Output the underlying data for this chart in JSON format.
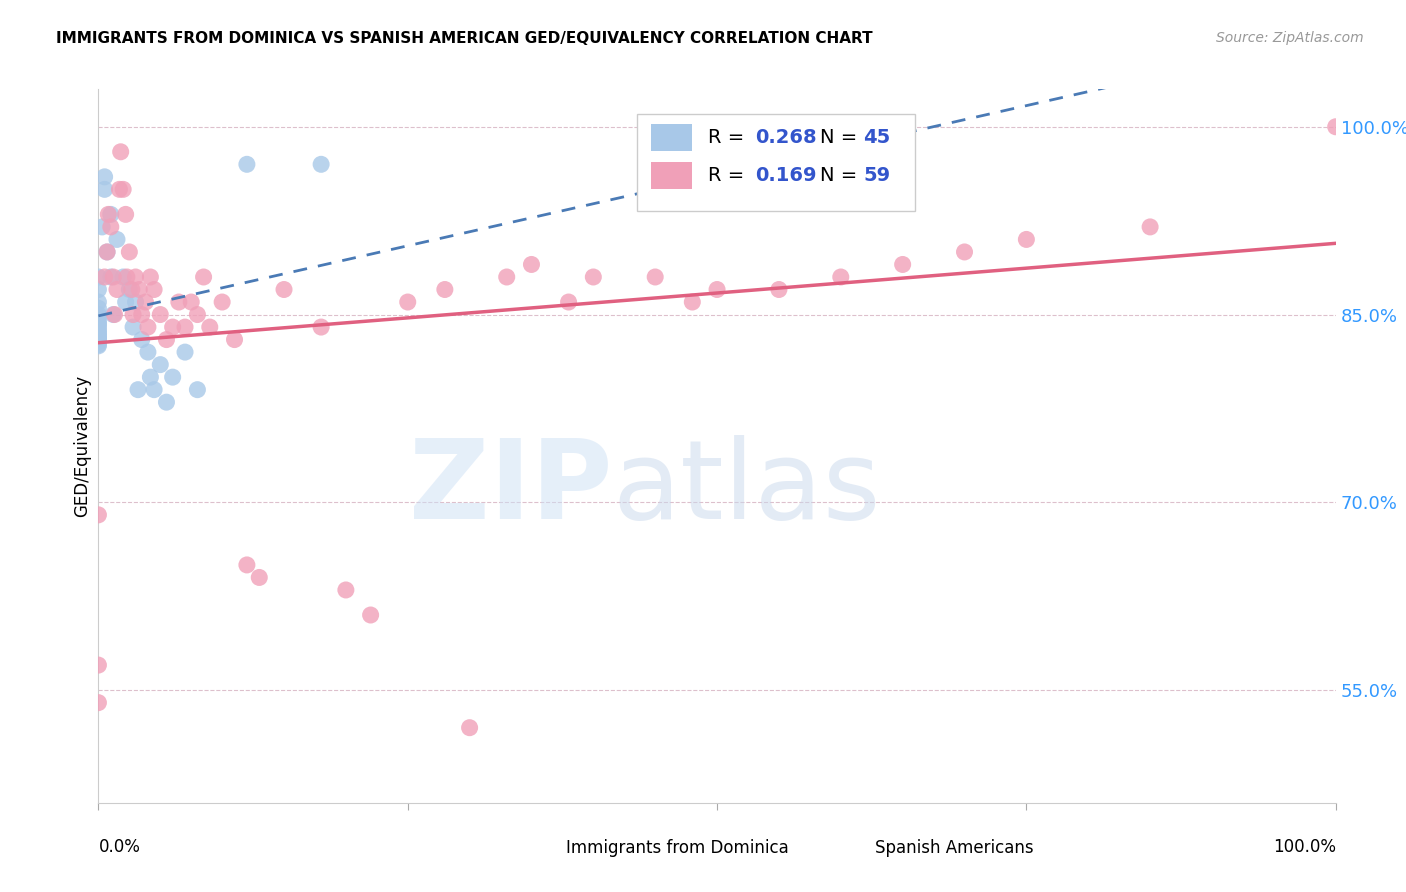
{
  "title": "IMMIGRANTS FROM DOMINICA VS SPANISH AMERICAN GED/EQUIVALENCY CORRELATION CHART",
  "source": "Source: ZipAtlas.com",
  "ylabel": "GED/Equivalency",
  "xlim": [
    0.0,
    1.0
  ],
  "ylim": [
    0.46,
    1.03
  ],
  "yticks": [
    0.55,
    0.7,
    0.85,
    1.0
  ],
  "ytick_labels": [
    "55.0%",
    "70.0%",
    "85.0%",
    "100.0%"
  ],
  "dominica_R": "0.268",
  "dominica_N": "45",
  "spanish_R": "0.169",
  "spanish_N": "59",
  "dominica_color": "#a8c8e8",
  "spanish_color": "#f0a0b8",
  "dominica_line_color": "#4a7ab5",
  "spanish_line_color": "#e06080",
  "legend_text_color": "#3355cc",
  "dominica_x": [
    0.0,
    0.0,
    0.0,
    0.0,
    0.0,
    0.0,
    0.0,
    0.0,
    0.0,
    0.0,
    0.0,
    0.0,
    0.0,
    0.0,
    0.0,
    0.0,
    0.0,
    0.0,
    0.0,
    0.0,
    0.003,
    0.005,
    0.005,
    0.007,
    0.01,
    0.01,
    0.012,
    0.015,
    0.02,
    0.022,
    0.025,
    0.028,
    0.03,
    0.032,
    0.035,
    0.04,
    0.042,
    0.045,
    0.05,
    0.055,
    0.06,
    0.07,
    0.08,
    0.12,
    0.18
  ],
  "dominica_y": [
    0.88,
    0.87,
    0.86,
    0.855,
    0.85,
    0.848,
    0.845,
    0.843,
    0.842,
    0.84,
    0.838,
    0.836,
    0.835,
    0.833,
    0.832,
    0.831,
    0.83,
    0.828,
    0.826,
    0.825,
    0.92,
    0.95,
    0.96,
    0.9,
    0.88,
    0.93,
    0.85,
    0.91,
    0.88,
    0.86,
    0.87,
    0.84,
    0.86,
    0.79,
    0.83,
    0.82,
    0.8,
    0.79,
    0.81,
    0.78,
    0.8,
    0.82,
    0.79,
    0.97,
    0.97
  ],
  "spanish_x": [
    0.0,
    0.0,
    0.0,
    0.005,
    0.007,
    0.008,
    0.01,
    0.012,
    0.013,
    0.015,
    0.017,
    0.018,
    0.02,
    0.022,
    0.023,
    0.025,
    0.027,
    0.028,
    0.03,
    0.033,
    0.035,
    0.038,
    0.04,
    0.042,
    0.045,
    0.05,
    0.055,
    0.06,
    0.065,
    0.07,
    0.075,
    0.08,
    0.085,
    0.09,
    0.1,
    0.11,
    0.12,
    0.13,
    0.15,
    0.18,
    0.2,
    0.22,
    0.25,
    0.28,
    0.3,
    0.33,
    0.35,
    0.38,
    0.4,
    0.45,
    0.48,
    0.5,
    0.55,
    0.6,
    0.65,
    0.7,
    0.75,
    0.85,
    1.0
  ],
  "spanish_y": [
    0.69,
    0.57,
    0.54,
    0.88,
    0.9,
    0.93,
    0.92,
    0.88,
    0.85,
    0.87,
    0.95,
    0.98,
    0.95,
    0.93,
    0.88,
    0.9,
    0.87,
    0.85,
    0.88,
    0.87,
    0.85,
    0.86,
    0.84,
    0.88,
    0.87,
    0.85,
    0.83,
    0.84,
    0.86,
    0.84,
    0.86,
    0.85,
    0.88,
    0.84,
    0.86,
    0.83,
    0.65,
    0.64,
    0.87,
    0.84,
    0.63,
    0.61,
    0.86,
    0.87,
    0.52,
    0.88,
    0.89,
    0.86,
    0.88,
    0.88,
    0.86,
    0.87,
    0.87,
    0.88,
    0.89,
    0.9,
    0.91,
    0.92,
    1.0
  ]
}
